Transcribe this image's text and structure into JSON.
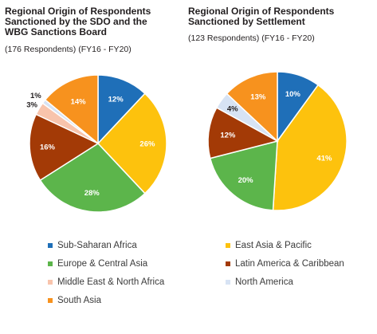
{
  "chart_data": [
    {
      "type": "pie",
      "title": "Regional Origin of Respondents Sanctioned by the SDO and the WBG Sanctions Board",
      "subtitle": "(176 Respondents) (FY16 - FY20)",
      "slices": [
        {
          "name": "Sub-Saharan Africa",
          "value": 12,
          "label": "12%"
        },
        {
          "name": "East Asia & Pacific",
          "value": 26,
          "label": "26%"
        },
        {
          "name": "Europe & Central Asia",
          "value": 28,
          "label": "28%"
        },
        {
          "name": "Latin America & Caribbean",
          "value": 16,
          "label": "16%"
        },
        {
          "name": "Middle East & North Africa",
          "value": 3,
          "label": "3%"
        },
        {
          "name": "North America",
          "value": 1,
          "label": "1%"
        },
        {
          "name": "South Asia",
          "value": 14,
          "label": "14%"
        }
      ]
    },
    {
      "type": "pie",
      "title": "Regional Origin of Respondents Sanctioned by Settlement",
      "subtitle": "(123 Respondents) (FY16 - FY20)",
      "slices": [
        {
          "name": "Sub-Saharan Africa",
          "value": 10,
          "label": "10%"
        },
        {
          "name": "East Asia & Pacific",
          "value": 41,
          "label": "41%"
        },
        {
          "name": "Europe & Central Asia",
          "value": 20,
          "label": "20%"
        },
        {
          "name": "Latin America & Caribbean",
          "value": 12,
          "label": "12%"
        },
        {
          "name": "North America",
          "value": 4,
          "label": "4%"
        },
        {
          "name": "South Asia",
          "value": 13,
          "label": "13%"
        }
      ]
    }
  ],
  "colors": {
    "Sub-Saharan Africa": "#1f6fb8",
    "East Asia & Pacific": "#fdc20d",
    "Europe & Central Asia": "#5cb54b",
    "Latin America & Caribbean": "#a33a06",
    "Middle East & North Africa": "#f8c4ac",
    "North America": "#d7e3f4",
    "South Asia": "#f7921e"
  },
  "legend": [
    {
      "label": "Sub-Saharan Africa",
      "color": "#1f6fb8"
    },
    {
      "label": "East Asia & Pacific",
      "color": "#fdc20d"
    },
    {
      "label": "Europe & Central Asia",
      "color": "#5cb54b"
    },
    {
      "label": "Latin America & Caribbean",
      "color": "#a33a06"
    },
    {
      "label": "Middle East & North Africa",
      "color": "#f8c4ac"
    },
    {
      "label": "North America",
      "color": "#d7e3f4"
    },
    {
      "label": "South Asia",
      "color": "#f7921e"
    }
  ]
}
